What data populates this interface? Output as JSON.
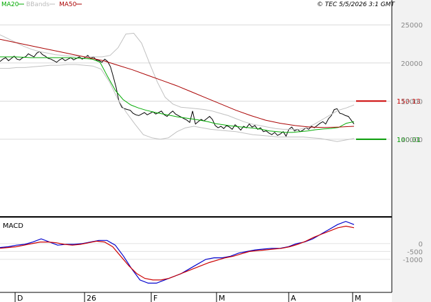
{
  "header": {
    "legend": [
      {
        "name": "MA20",
        "color": "#00aa00"
      },
      {
        "name": "BBands",
        "color": "#bbbbbb"
      },
      {
        "name": "MA50",
        "color": "#aa0000"
      }
    ],
    "source": "© TEC 5/5/2026 3:1 GMT"
  },
  "chart_data": [
    {
      "type": "line",
      "panel": "price",
      "ylim": [
        0,
        27000
      ],
      "y_ticks": [
        25000,
        20000,
        15000,
        10000
      ],
      "y_tick_labels": [
        "25000",
        "20000",
        "15000",
        "10000"
      ],
      "grid": true,
      "x_ticks": [
        "D",
        "26",
        "F",
        "M",
        "A",
        "M"
      ],
      "levels": [
        {
          "label": "150.13",
          "value": 15013,
          "color": "#cc0000"
        },
        {
          "label": "100.01",
          "value": 10001,
          "color": "#009900"
        }
      ],
      "series": [
        {
          "name": "Price",
          "color": "#000000",
          "values": [
            20200,
            20500,
            20700,
            20300,
            20600,
            20900,
            20500,
            20400,
            20700,
            20800,
            21200,
            21000,
            20800,
            21300,
            21500,
            21100,
            20900,
            20600,
            20500,
            20300,
            20100,
            20400,
            20600,
            20300,
            20500,
            20700,
            20400,
            20600,
            20800,
            20500,
            20700,
            21000,
            20600,
            20800,
            20400,
            20300,
            20100,
            20500,
            20200,
            19500,
            18200,
            16800,
            15000,
            14200,
            14000,
            13900,
            13800,
            13400,
            13200,
            13100,
            13300,
            13500,
            13200,
            13400,
            13600,
            13300,
            13500,
            13700,
            13200,
            13000,
            13400,
            13700,
            13300,
            13100,
            12900,
            12700,
            12500,
            12200,
            13700,
            12000,
            12300,
            12600,
            12400,
            12700,
            13000,
            12600,
            11800,
            11500,
            11700,
            11400,
            11800,
            11600,
            11300,
            11900,
            11600,
            11200,
            11700,
            11500,
            12000,
            11600,
            11800,
            11300,
            11500,
            11000,
            11100,
            10800,
            10600,
            10900,
            10500,
            10700,
            11000,
            10400,
            11300,
            11600,
            11100,
            11300,
            11000,
            11200,
            11500,
            11300,
            11700,
            11500,
            11800,
            12100,
            12300,
            12000,
            12700,
            13100,
            13900,
            14000,
            13400,
            13300,
            13100,
            13000,
            12500,
            12000
          ]
        },
        {
          "name": "MA20",
          "color": "#00aa00",
          "values": [
            20800,
            20800,
            20800,
            20750,
            20700,
            20700,
            20700,
            20700,
            20700,
            20700,
            20650,
            20600,
            20500,
            20100,
            18200,
            16400,
            15200,
            14500,
            14100,
            13800,
            13550,
            13350,
            13150,
            12950,
            12800,
            12650,
            12500,
            12300,
            12050,
            11900,
            11750,
            11650,
            11550,
            11450,
            11300,
            11100,
            11000,
            10900,
            10900,
            11000,
            11100,
            11250,
            11350,
            11400,
            11550,
            12100,
            12300
          ]
        },
        {
          "name": "BBands upper",
          "color": "#c0c0c0",
          "values": [
            23700,
            23200,
            22700,
            22200,
            21800,
            21500,
            21300,
            21100,
            21000,
            20900,
            20900,
            20800,
            20800,
            20800,
            21000,
            22000,
            23800,
            23900,
            22600,
            20000,
            17500,
            15500,
            14600,
            14200,
            14100,
            14000,
            13900,
            13700,
            13400,
            13100,
            12700,
            12300,
            12000,
            11800,
            11600,
            11400,
            11300,
            11300,
            11300,
            11500,
            12000,
            12600,
            13200,
            13800,
            14100,
            14500
          ]
        },
        {
          "name": "BBands lower",
          "color": "#c0c0c0",
          "values": [
            19300,
            19300,
            19400,
            19400,
            19500,
            19600,
            19700,
            19700,
            19800,
            19800,
            19700,
            19600,
            19200,
            17500,
            15200,
            13500,
            12000,
            10600,
            10200,
            10000,
            10200,
            11000,
            11500,
            11700,
            11500,
            11300,
            11200,
            11100,
            11000,
            10800,
            10600,
            10500,
            10400,
            10300,
            10300,
            10300,
            10300,
            10200,
            10100,
            9900,
            9700,
            9900,
            10100
          ]
        },
        {
          "name": "MA50",
          "color": "#aa0000",
          "values": [
            23100,
            22700,
            22300,
            21900,
            21500,
            21100,
            20700,
            20300,
            19700,
            19100,
            18400,
            17700,
            17000,
            16200,
            15400,
            14600,
            13800,
            13100,
            12500,
            12100,
            11800,
            11600,
            11550,
            11600,
            11700
          ]
        }
      ]
    },
    {
      "type": "line",
      "panel": "MACD",
      "title": "MACD",
      "ylim": [
        -3000,
        1600
      ],
      "y_ticks": [
        0,
        -500,
        -1000
      ],
      "y_tick_labels": [
        "0",
        "-500",
        "-1000"
      ],
      "grid": true,
      "series": [
        {
          "name": "MACD",
          "color": "#0000cc",
          "values": [
            -250,
            -200,
            -100,
            -50,
            100,
            300,
            100,
            -100,
            -50,
            -50,
            0,
            100,
            200,
            200,
            -100,
            -800,
            -1600,
            -2300,
            -2500,
            -2500,
            -2300,
            -2100,
            -1900,
            -1600,
            -1300,
            -1000,
            -900,
            -900,
            -800,
            -600,
            -500,
            -400,
            -350,
            -300,
            -300,
            -200,
            0,
            100,
            300,
            600,
            900,
            1200,
            1400,
            1200
          ]
        },
        {
          "name": "Signal",
          "color": "#cc0000",
          "values": [
            -300,
            -250,
            -200,
            -100,
            0,
            100,
            100,
            50,
            -50,
            -100,
            -50,
            50,
            150,
            100,
            -200,
            -800,
            -1400,
            -1900,
            -2200,
            -2300,
            -2300,
            -2200,
            -2000,
            -1800,
            -1600,
            -1400,
            -1200,
            -1050,
            -900,
            -800,
            -650,
            -500,
            -450,
            -400,
            -350,
            -300,
            -200,
            -50,
            150,
            400,
            600,
            800,
            1000,
            1100,
            1000
          ]
        }
      ]
    }
  ]
}
